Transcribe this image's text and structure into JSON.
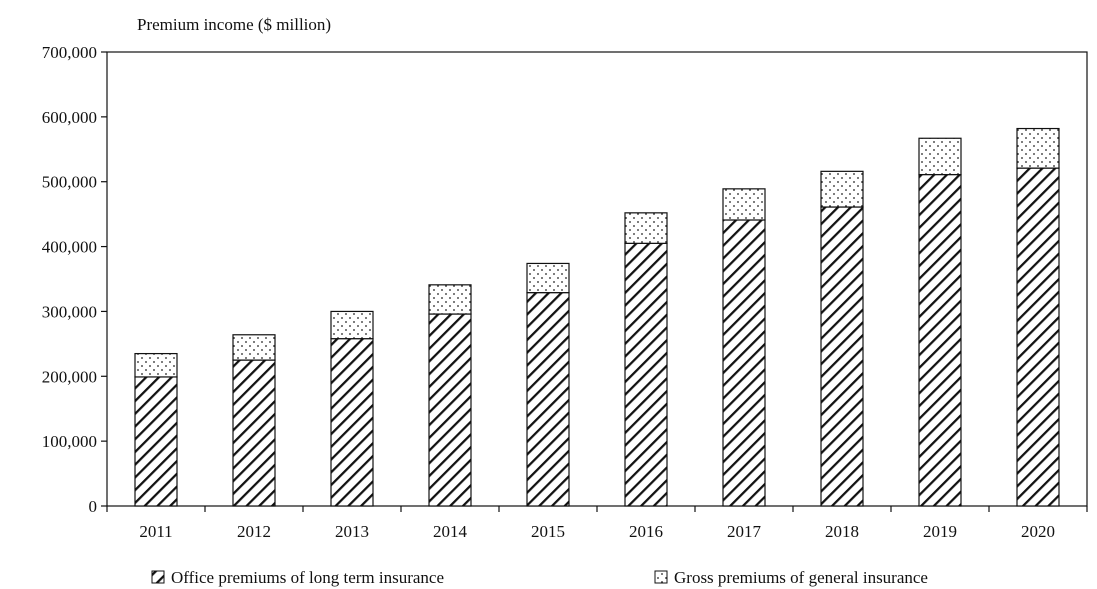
{
  "chart_data": {
    "type": "bar",
    "stacked": true,
    "title": "",
    "ylabel": "Premium income ($ million)",
    "xlabel": "",
    "categories": [
      "2011",
      "2012",
      "2013",
      "2014",
      "2015",
      "2016",
      "2017",
      "2018",
      "2019",
      "2020"
    ],
    "series": [
      {
        "name": "Office premiums of long term insurance",
        "pattern": "hatch",
        "values": [
          199000,
          225000,
          258000,
          296000,
          329000,
          405000,
          441000,
          461000,
          511000,
          521000
        ]
      },
      {
        "name": "Gross premiums of general insurance",
        "pattern": "dots",
        "values": [
          36000,
          39000,
          42000,
          45000,
          45000,
          47000,
          48000,
          55000,
          56000,
          61000
        ]
      }
    ],
    "ylim": [
      0,
      700000
    ],
    "yticks": [
      0,
      100000,
      200000,
      300000,
      400000,
      500000,
      600000,
      700000
    ],
    "ytick_labels": [
      "0",
      "100,000",
      "200,000",
      "300,000",
      "400,000",
      "500,000",
      "600,000",
      "700,000"
    ],
    "grid": false,
    "legend_position": "bottom",
    "colors": {
      "stroke": "#111111",
      "fill": "#ffffff"
    }
  }
}
